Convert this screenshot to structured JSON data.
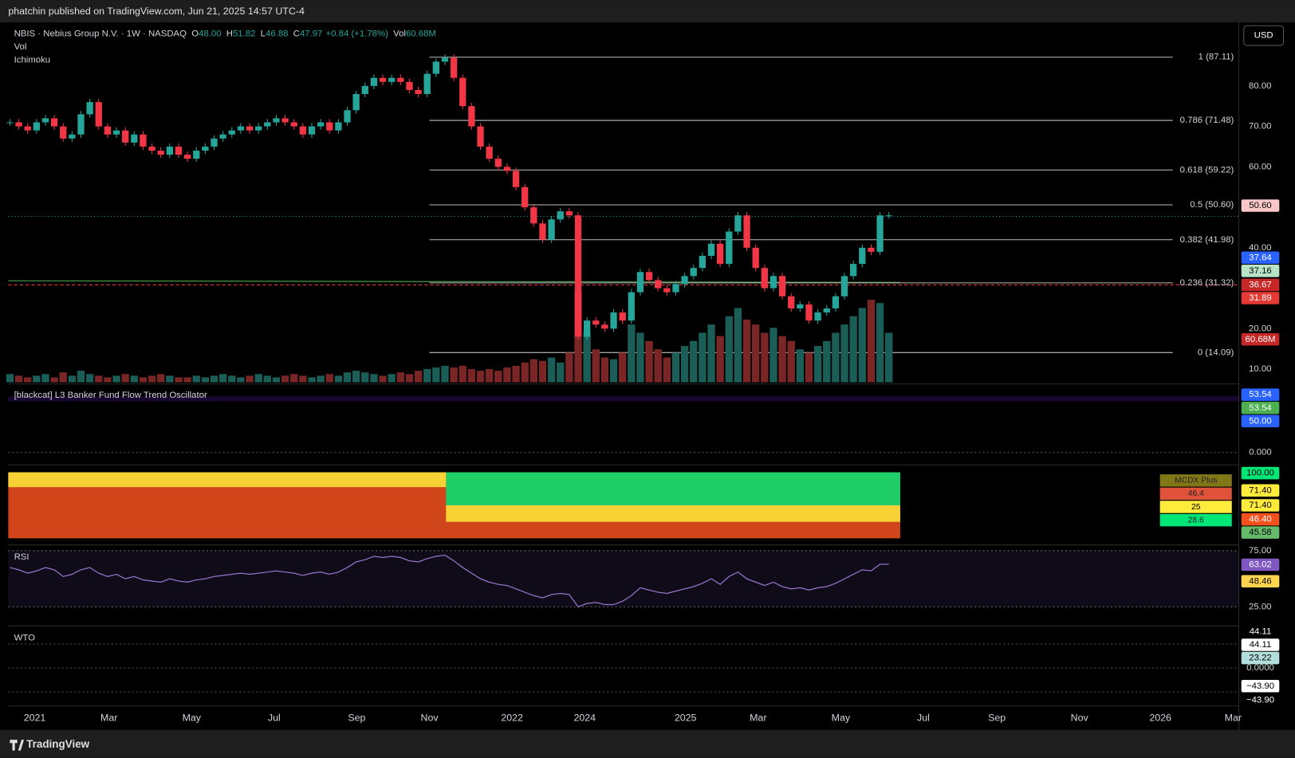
{
  "header": {
    "byline": "phatchin published on TradingView.com, Jun 21, 2025 14:57 UTC-4",
    "symbol": "NBIS · Nebius Group N.V. · 1W · NASDAQ",
    "ohlc": [
      {
        "key": "O",
        "value": "48.00"
      },
      {
        "key": "H",
        "value": "51.82"
      },
      {
        "key": "L",
        "value": "46.88"
      },
      {
        "key": "C",
        "value": "47.97"
      }
    ],
    "change": "+0.84 (+1.78%)",
    "vol_key": "Vol",
    "vol_value": "60.68M",
    "indicators": [
      "Vol",
      "Ichimoku"
    ]
  },
  "currency": "USD",
  "price_pane": {
    "axis_ticks": [
      {
        "value": 80,
        "label": "80.00"
      },
      {
        "value": 70,
        "label": "70.00"
      },
      {
        "value": 60,
        "label": "60.00"
      },
      {
        "value": 40,
        "label": "40.00"
      },
      {
        "value": 20,
        "label": "20.00"
      },
      {
        "value": 10,
        "label": "10.00"
      }
    ],
    "fib_levels": [
      {
        "value": 87.11,
        "label": "1 (87.11)"
      },
      {
        "value": 71.48,
        "label": "0.786 (71.48)"
      },
      {
        "value": 59.22,
        "label": "0.618 (59.22)"
      },
      {
        "value": 50.6,
        "label": "0.5 (50.60)"
      },
      {
        "value": 41.98,
        "label": "0.382 (41.98)"
      },
      {
        "value": 31.32,
        "label": "0.236 (31.32)"
      },
      {
        "value": 14.09,
        "label": "0 (14.09)"
      }
    ],
    "price_tags": [
      {
        "label": "50.60",
        "color": "#f8c8c8",
        "text": "#000"
      },
      {
        "label": "37.64",
        "color": "#2962ff",
        "text": "#fff"
      },
      {
        "label": "37.16",
        "color": "#b7e4c7",
        "text": "#000"
      },
      {
        "label": "36.67",
        "color": "#c62828",
        "text": "#fff"
      },
      {
        "label": "31.89",
        "color": "#e53935",
        "text": "#fff"
      },
      {
        "label": "60.68M",
        "color": "#c62828",
        "text": "#fff"
      }
    ],
    "up_color": "#26a69a",
    "down_color": "#f23645",
    "closes": [
      71,
      70,
      69,
      71,
      72,
      70,
      67,
      68,
      73,
      76,
      70,
      68,
      69,
      66,
      68,
      65,
      64,
      63,
      65,
      63,
      62,
      64,
      65,
      67,
      68,
      69,
      70,
      69,
      70,
      71,
      72,
      71,
      70,
      68,
      70,
      71,
      69,
      71,
      74,
      78,
      80,
      82,
      81,
      82,
      81,
      79,
      78,
      83,
      86,
      87,
      82,
      75,
      70,
      65,
      62,
      60,
      59,
      55,
      50,
      46,
      42,
      47,
      49,
      48,
      18,
      22,
      21,
      20,
      24,
      22,
      29,
      34,
      32,
      30,
      29,
      31,
      33,
      35,
      38,
      41,
      36,
      44,
      48,
      40,
      35,
      30,
      33,
      28,
      25,
      26,
      22,
      24,
      25,
      28,
      33,
      36,
      40,
      39,
      48,
      48
    ],
    "volumes": [
      5,
      4,
      3,
      4,
      5,
      3,
      6,
      4,
      7,
      5,
      4,
      3,
      4,
      5,
      4,
      3,
      4,
      5,
      4,
      3,
      3,
      4,
      3,
      4,
      5,
      4,
      3,
      4,
      5,
      4,
      3,
      4,
      5,
      4,
      3,
      4,
      5,
      4,
      6,
      7,
      6,
      5,
      4,
      5,
      6,
      5,
      7,
      8,
      9,
      10,
      9,
      10,
      8,
      7,
      8,
      7,
      9,
      10,
      12,
      14,
      13,
      15,
      12,
      18,
      55,
      30,
      20,
      15,
      14,
      18,
      35,
      30,
      25,
      20,
      15,
      18,
      22,
      25,
      30,
      35,
      28,
      40,
      45,
      38,
      35,
      30,
      33,
      28,
      25,
      20,
      18,
      22,
      25,
      30,
      35,
      40,
      45,
      50,
      48,
      30
    ]
  },
  "oscillator": {
    "title": "[blackcat] L3 Banker Fund Flow Trend Oscillator",
    "tags": [
      {
        "label": "53.54",
        "color": "#2962ff",
        "text": "#fff"
      },
      {
        "label": "53.54",
        "color": "#4caf50",
        "text": "#fff"
      },
      {
        "label": "50.00",
        "color": "#2962ff",
        "text": "#fff"
      },
      {
        "label": "0.000",
        "color": "none",
        "text": "#d1d4dc"
      }
    ]
  },
  "mcdx": {
    "tags": [
      {
        "label": "100.00",
        "color": "#00e676",
        "text": "#000"
      },
      {
        "label": "71.40",
        "color": "#ffeb3b",
        "text": "#000"
      },
      {
        "label": "71.40",
        "color": "#ffeb3b",
        "text": "#000"
      },
      {
        "label": "46.40",
        "color": "#f4511e",
        "text": "#fff"
      },
      {
        "label": "45.58",
        "color": "#66bb6a",
        "text": "#000"
      }
    ],
    "table": [
      {
        "label": "MCDX Plus",
        "color": "#827717"
      },
      {
        "label": "46.4",
        "color": "#e0533a"
      },
      {
        "label": "25",
        "color": "#ffeb3b"
      },
      {
        "label": "28.6",
        "color": "#00e676"
      }
    ]
  },
  "rsi": {
    "title": "RSI",
    "ticks": [
      {
        "value": 75,
        "label": "75.00"
      },
      {
        "value": 25,
        "label": "25.00"
      }
    ],
    "tags": [
      {
        "label": "63.02",
        "color": "#7e57c2",
        "text": "#fff"
      },
      {
        "label": "48.46",
        "color": "#ffd54f",
        "text": "#000"
      }
    ],
    "color": "#9575cd",
    "values": [
      60,
      58,
      55,
      57,
      60,
      58,
      52,
      54,
      58,
      60,
      55,
      52,
      54,
      50,
      52,
      49,
      48,
      47,
      50,
      48,
      47,
      49,
      50,
      52,
      53,
      54,
      55,
      54,
      55,
      56,
      57,
      56,
      55,
      53,
      55,
      56,
      54,
      56,
      60,
      65,
      67,
      70,
      69,
      70,
      69,
      66,
      65,
      68,
      70,
      71,
      66,
      60,
      55,
      50,
      47,
      45,
      44,
      41,
      38,
      35,
      33,
      36,
      37,
      36,
      25,
      28,
      29,
      27,
      27,
      30,
      35,
      42,
      40,
      38,
      37,
      39,
      41,
      43,
      46,
      50,
      45,
      52,
      56,
      50,
      47,
      44,
      47,
      43,
      41,
      42,
      40,
      42,
      43,
      46,
      50,
      54,
      58,
      57,
      63,
      63
    ]
  },
  "wto": {
    "title": "WTO",
    "tags": [
      {
        "label": "44.11",
        "color": "#000",
        "text": "#fff"
      },
      {
        "label": "44.11",
        "color": "#fff",
        "text": "#000"
      },
      {
        "label": "23.22",
        "color": "#b2dfdb",
        "text": "#000"
      },
      {
        "label": "0.0000",
        "color": "none",
        "text": "#d1d4dc"
      },
      {
        "label": "−43.90",
        "color": "#fff",
        "text": "#000"
      },
      {
        "label": "−43.90",
        "color": "#000",
        "text": "#fff"
      }
    ]
  },
  "time_axis": [
    "2021",
    "Mar",
    "May",
    "Jul",
    "Sep",
    "Nov",
    "2022",
    "2024",
    "2025",
    "Mar",
    "May",
    "Jul",
    "Sep",
    "Nov",
    "2026",
    "Mar"
  ],
  "footer": "TradingView"
}
